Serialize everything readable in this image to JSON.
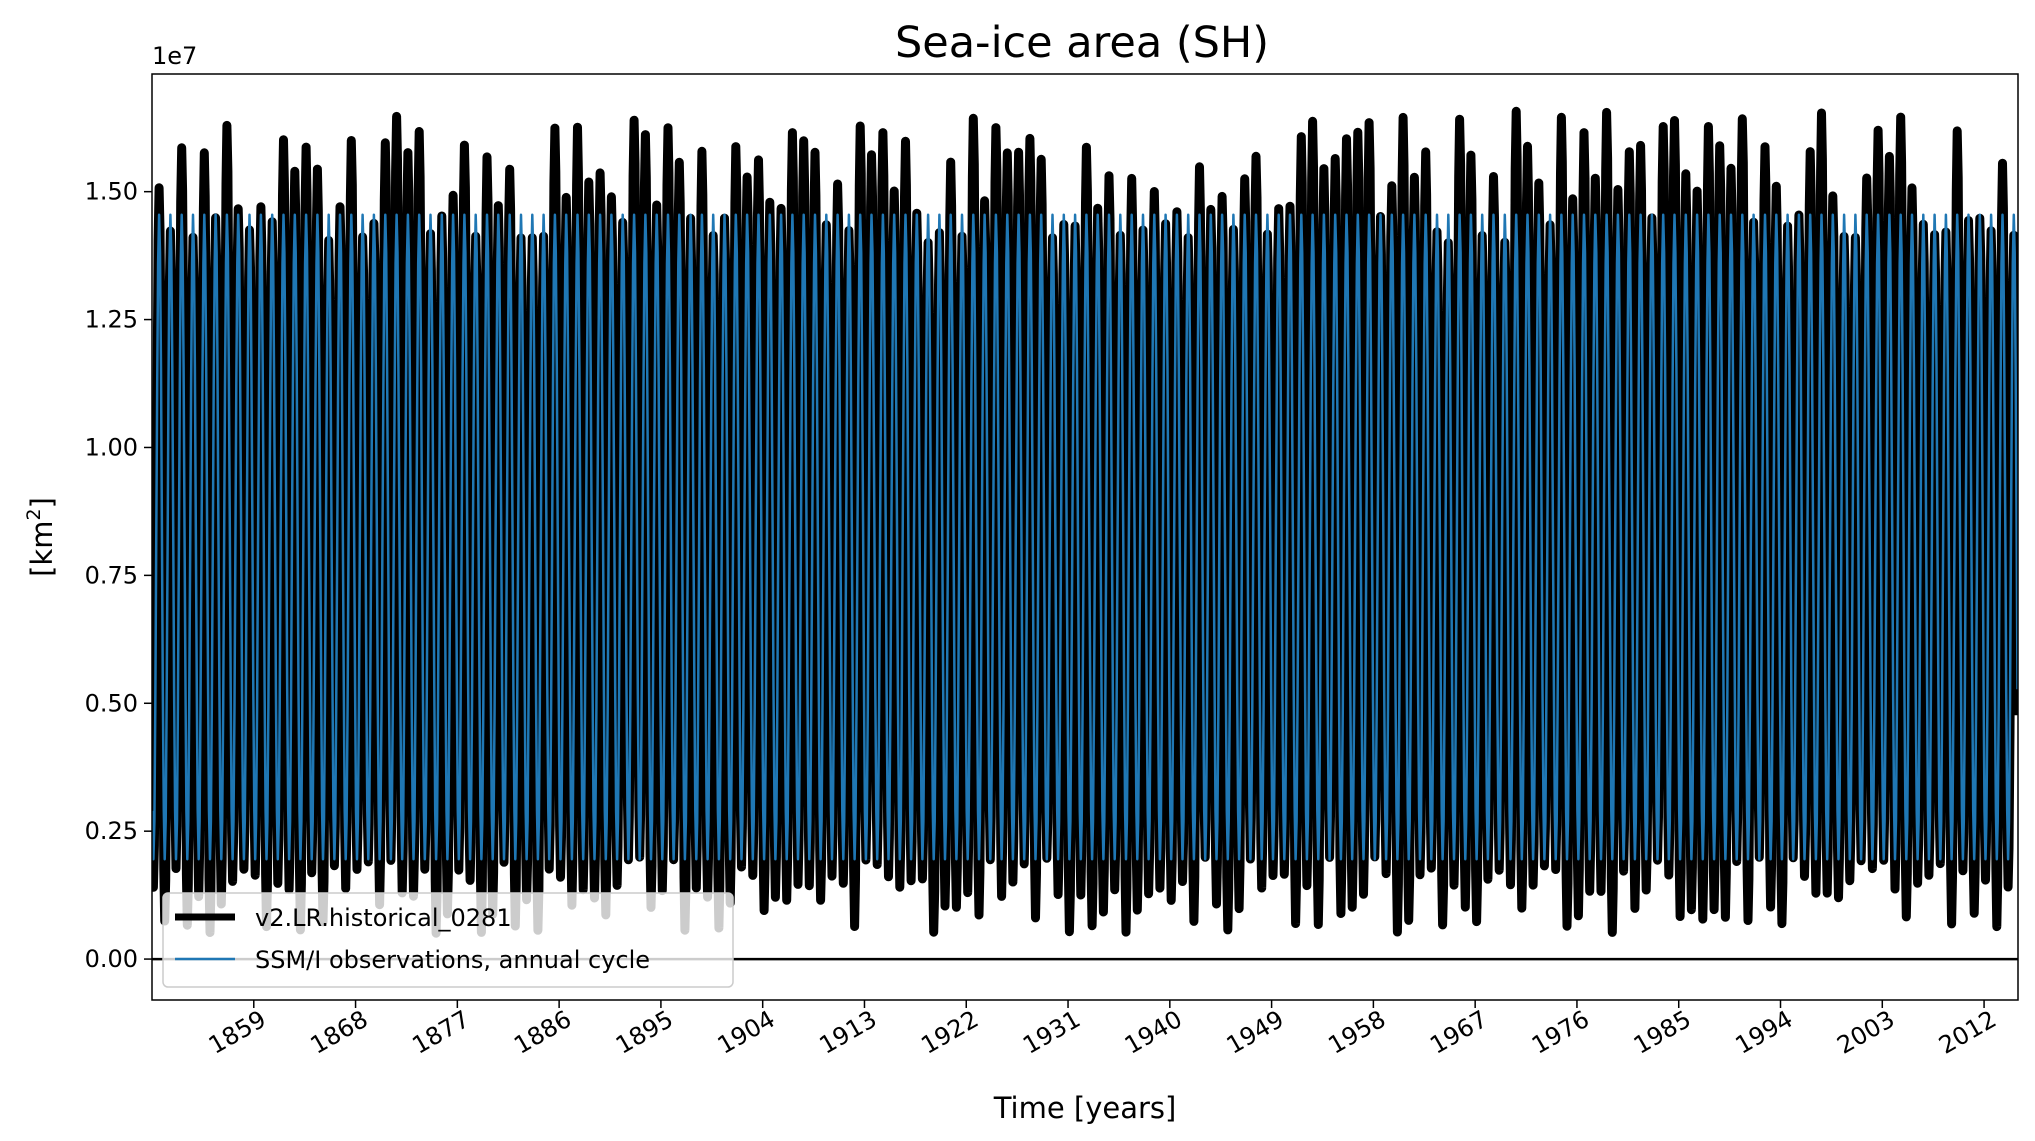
{
  "chart_data": {
    "type": "line",
    "title": "Sea-ice area (SH)",
    "xlabel": "Time [years]",
    "ylabel_prefix": "[km",
    "ylabel_sup": "2",
    "ylabel_suffix": "]",
    "y_offset_text": "1e7",
    "xlim": [
      1850,
      2015
    ],
    "ylim": [
      -0.08,
      1.73
    ],
    "x_ticks": [
      1859,
      1868,
      1877,
      1886,
      1895,
      1904,
      1913,
      1922,
      1931,
      1940,
      1949,
      1958,
      1967,
      1976,
      1985,
      1994,
      2003,
      2012
    ],
    "x_tick_labels": [
      "1859",
      "1868",
      "1877",
      "1886",
      "1895",
      "1904",
      "1913",
      "1922",
      "1931",
      "1940",
      "1949",
      "1958",
      "1967",
      "1976",
      "1985",
      "1994",
      "2003",
      "2012"
    ],
    "y_ticks": [
      0.0,
      0.25,
      0.5,
      0.75,
      1.0,
      1.25,
      1.5
    ],
    "y_tick_labels": [
      "0.00",
      "0.25",
      "0.50",
      "0.75",
      "1.00",
      "1.25",
      "1.50"
    ],
    "zero_line": true,
    "grid": false,
    "legend_position": "lower-left",
    "series": [
      {
        "name": "v2.LR.historical_0281",
        "color": "#000000",
        "style": "thick",
        "annual_max_range": [
          1.4,
          1.66
        ],
        "annual_min_range": [
          0.05,
          0.2
        ]
      },
      {
        "name": "SSM/I observations, annual cycle",
        "color": "#1f77b4",
        "style": "thin",
        "annual_max": 1.455,
        "annual_min": 0.195
      }
    ]
  }
}
